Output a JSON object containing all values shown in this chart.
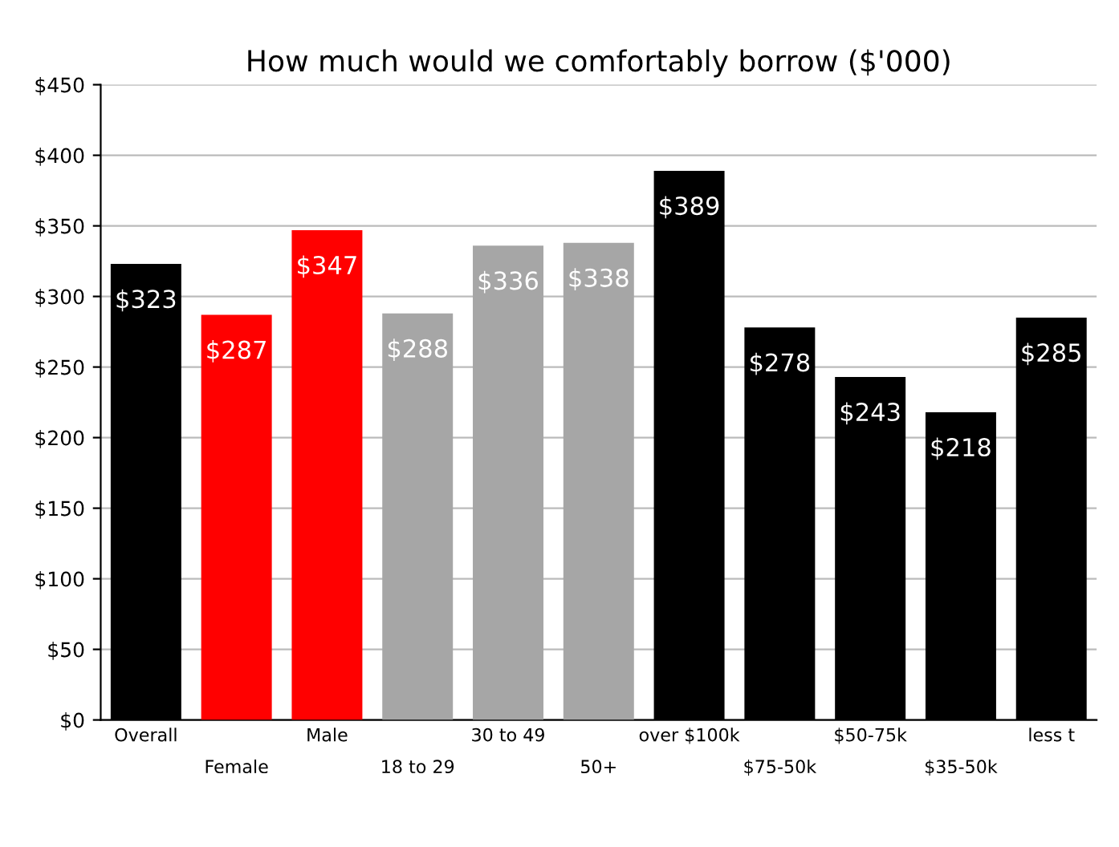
{
  "chart_data": {
    "type": "bar",
    "title": "How much would we comfortably borrow ($'000)",
    "categories": [
      "Overall",
      "Female",
      "Male",
      "18 to 29",
      "30 to 49",
      "50+",
      "over $100k",
      "$75-50k",
      "$50-75k",
      "$35-50k",
      "less t"
    ],
    "values": [
      323,
      287,
      347,
      288,
      336,
      338,
      389,
      278,
      243,
      218,
      285
    ],
    "colors": [
      "#000000",
      "#ff0000",
      "#ff0000",
      "#a6a6a6",
      "#a6a6a6",
      "#a6a6a6",
      "#000000",
      "#000000",
      "#000000",
      "#000000",
      "#000000"
    ],
    "value_labels": [
      "$323",
      "$287",
      "$347",
      "$288",
      "$336",
      "$338",
      "$389",
      "$278",
      "$243",
      "$218",
      "$285"
    ],
    "ylim": [
      0,
      450
    ],
    "yticks": [
      {
        "value": 0,
        "label": "$0"
      },
      {
        "value": 50,
        "label": "$50"
      },
      {
        "value": 100,
        "label": "$100"
      },
      {
        "value": 150,
        "label": "$150"
      },
      {
        "value": 200,
        "label": "$200"
      },
      {
        "value": 250,
        "label": "$250"
      },
      {
        "value": 300,
        "label": "$300"
      },
      {
        "value": 350,
        "label": "$350"
      },
      {
        "value": 400,
        "label": "$400"
      },
      {
        "value": 450,
        "label": "$450"
      }
    ],
    "grid": "y"
  }
}
